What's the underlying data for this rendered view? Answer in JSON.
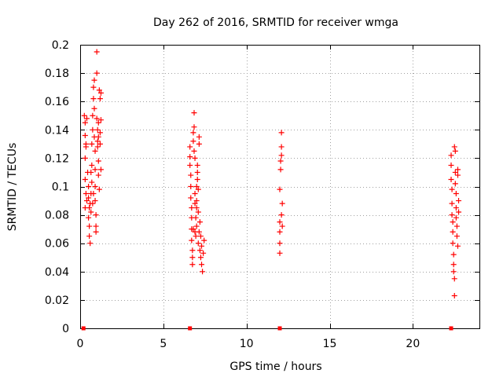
{
  "chart_data": {
    "type": "scatter",
    "title": "Day 262 of 2016, SRMTID for receiver wmga",
    "xlabel": "GPS time / hours",
    "ylabel": "SRMTID / TECUs",
    "xlim": [
      0,
      24
    ],
    "ylim": [
      0,
      0.2
    ],
    "xticks": [
      0,
      5,
      10,
      15,
      20
    ],
    "yticks": [
      0,
      0.02,
      0.04,
      0.06,
      0.08,
      0.1,
      0.12,
      0.14,
      0.16,
      0.18,
      0.2
    ],
    "grid": true,
    "marker": "+",
    "color": "#ff0000",
    "series": [
      {
        "name": "srmtid",
        "points": [
          [
            0.25,
            0.15
          ],
          [
            0.3,
            0.145
          ],
          [
            0.3,
            0.136
          ],
          [
            0.35,
            0.128
          ],
          [
            0.3,
            0.12
          ],
          [
            0.3,
            0.105
          ],
          [
            0.35,
            0.095
          ],
          [
            0.4,
            0.09
          ],
          [
            0.3,
            0.085
          ],
          [
            0.35,
            0.13
          ],
          [
            0.4,
            0.148
          ],
          [
            0.45,
            0.11
          ],
          [
            0.5,
            0.1
          ],
          [
            0.5,
            0.092
          ],
          [
            0.55,
            0.085
          ],
          [
            0.5,
            0.078
          ],
          [
            0.55,
            0.072
          ],
          [
            0.55,
            0.065
          ],
          [
            0.6,
            0.06
          ],
          [
            0.6,
            0.088
          ],
          [
            0.65,
            0.082
          ],
          [
            0.65,
            0.095
          ],
          [
            0.7,
            0.103
          ],
          [
            0.7,
            0.115
          ],
          [
            0.7,
            0.13
          ],
          [
            0.75,
            0.14
          ],
          [
            0.75,
            0.15
          ],
          [
            0.8,
            0.162
          ],
          [
            0.8,
            0.17
          ],
          [
            0.85,
            0.175
          ],
          [
            0.85,
            0.155
          ],
          [
            0.85,
            0.135
          ],
          [
            0.9,
            0.125
          ],
          [
            0.9,
            0.112
          ],
          [
            0.9,
            0.1
          ],
          [
            0.9,
            0.09
          ],
          [
            0.95,
            0.08
          ],
          [
            0.95,
            0.072
          ],
          [
            0.95,
            0.068
          ],
          [
            1.0,
            0.195
          ],
          [
            1.0,
            0.18
          ],
          [
            1.0,
            0.148
          ],
          [
            1.05,
            0.14
          ],
          [
            1.05,
            0.132
          ],
          [
            1.05,
            0.128
          ],
          [
            1.1,
            0.135
          ],
          [
            1.1,
            0.145
          ],
          [
            1.1,
            0.118
          ],
          [
            1.1,
            0.108
          ],
          [
            1.15,
            0.098
          ],
          [
            1.15,
            0.168
          ],
          [
            1.2,
            0.162
          ],
          [
            1.2,
            0.138
          ],
          [
            1.2,
            0.13
          ],
          [
            1.25,
            0.147
          ],
          [
            1.25,
            0.112
          ],
          [
            1.25,
            0.166
          ],
          [
            0.65,
            0.11
          ],
          [
            0.75,
            0.088
          ],
          [
            0.8,
            0.095
          ],
          [
            6.6,
            0.128
          ],
          [
            6.6,
            0.121
          ],
          [
            6.6,
            0.115
          ],
          [
            6.65,
            0.108
          ],
          [
            6.65,
            0.1
          ],
          [
            6.65,
            0.092
          ],
          [
            6.7,
            0.085
          ],
          [
            6.7,
            0.078
          ],
          [
            6.7,
            0.07
          ],
          [
            6.7,
            0.062
          ],
          [
            6.75,
            0.055
          ],
          [
            6.75,
            0.05
          ],
          [
            6.75,
            0.045
          ],
          [
            6.8,
            0.138
          ],
          [
            6.8,
            0.132
          ],
          [
            6.8,
            0.07
          ],
          [
            6.85,
            0.152
          ],
          [
            6.85,
            0.142
          ],
          [
            6.85,
            0.125
          ],
          [
            6.9,
            0.068
          ],
          [
            6.9,
            0.088
          ],
          [
            6.9,
            0.095
          ],
          [
            6.95,
            0.078
          ],
          [
            6.95,
            0.065
          ],
          [
            7.0,
            0.072
          ],
          [
            7.0,
            0.085
          ],
          [
            7.0,
            0.09
          ],
          [
            7.05,
            0.11
          ],
          [
            7.05,
            0.115
          ],
          [
            7.05,
            0.105
          ],
          [
            7.1,
            0.098
          ],
          [
            7.1,
            0.082
          ],
          [
            7.1,
            0.06
          ],
          [
            7.15,
            0.13
          ],
          [
            7.15,
            0.135
          ],
          [
            7.15,
            0.068
          ],
          [
            7.2,
            0.055
          ],
          [
            7.2,
            0.075
          ],
          [
            7.25,
            0.065
          ],
          [
            7.25,
            0.05
          ],
          [
            7.3,
            0.058
          ],
          [
            7.3,
            0.045
          ],
          [
            7.35,
            0.04
          ],
          [
            7.4,
            0.053
          ],
          [
            7.45,
            0.062
          ],
          [
            6.9,
            0.12
          ],
          [
            7.0,
            0.1
          ],
          [
            12.0,
            0.053
          ],
          [
            12.0,
            0.06
          ],
          [
            12.0,
            0.068
          ],
          [
            12.0,
            0.075
          ],
          [
            12.0,
            0.098
          ],
          [
            12.05,
            0.112
          ],
          [
            12.05,
            0.118
          ],
          [
            12.1,
            0.122
          ],
          [
            12.1,
            0.128
          ],
          [
            12.1,
            0.138
          ],
          [
            12.1,
            0.08
          ],
          [
            12.15,
            0.088
          ],
          [
            12.15,
            0.072
          ],
          [
            22.3,
            0.122
          ],
          [
            22.3,
            0.115
          ],
          [
            22.3,
            0.105
          ],
          [
            22.35,
            0.098
          ],
          [
            22.35,
            0.088
          ],
          [
            22.35,
            0.08
          ],
          [
            22.4,
            0.075
          ],
          [
            22.4,
            0.068
          ],
          [
            22.4,
            0.06
          ],
          [
            22.45,
            0.052
          ],
          [
            22.45,
            0.045
          ],
          [
            22.45,
            0.04
          ],
          [
            22.5,
            0.035
          ],
          [
            22.5,
            0.023
          ],
          [
            22.5,
            0.128
          ],
          [
            22.55,
            0.125
          ],
          [
            22.55,
            0.11
          ],
          [
            22.55,
            0.102
          ],
          [
            22.6,
            0.095
          ],
          [
            22.6,
            0.085
          ],
          [
            22.6,
            0.078
          ],
          [
            22.65,
            0.072
          ],
          [
            22.65,
            0.065
          ],
          [
            22.7,
            0.058
          ],
          [
            22.7,
            0.112
          ],
          [
            22.7,
            0.108
          ],
          [
            22.75,
            0.082
          ],
          [
            22.75,
            0.09
          ]
        ]
      }
    ],
    "baseline_markers": {
      "name": "zero-markers",
      "marker": "square",
      "points": [
        [
          0.2,
          0
        ],
        [
          6.6,
          0
        ],
        [
          12.0,
          0
        ],
        [
          22.3,
          0
        ]
      ]
    }
  }
}
